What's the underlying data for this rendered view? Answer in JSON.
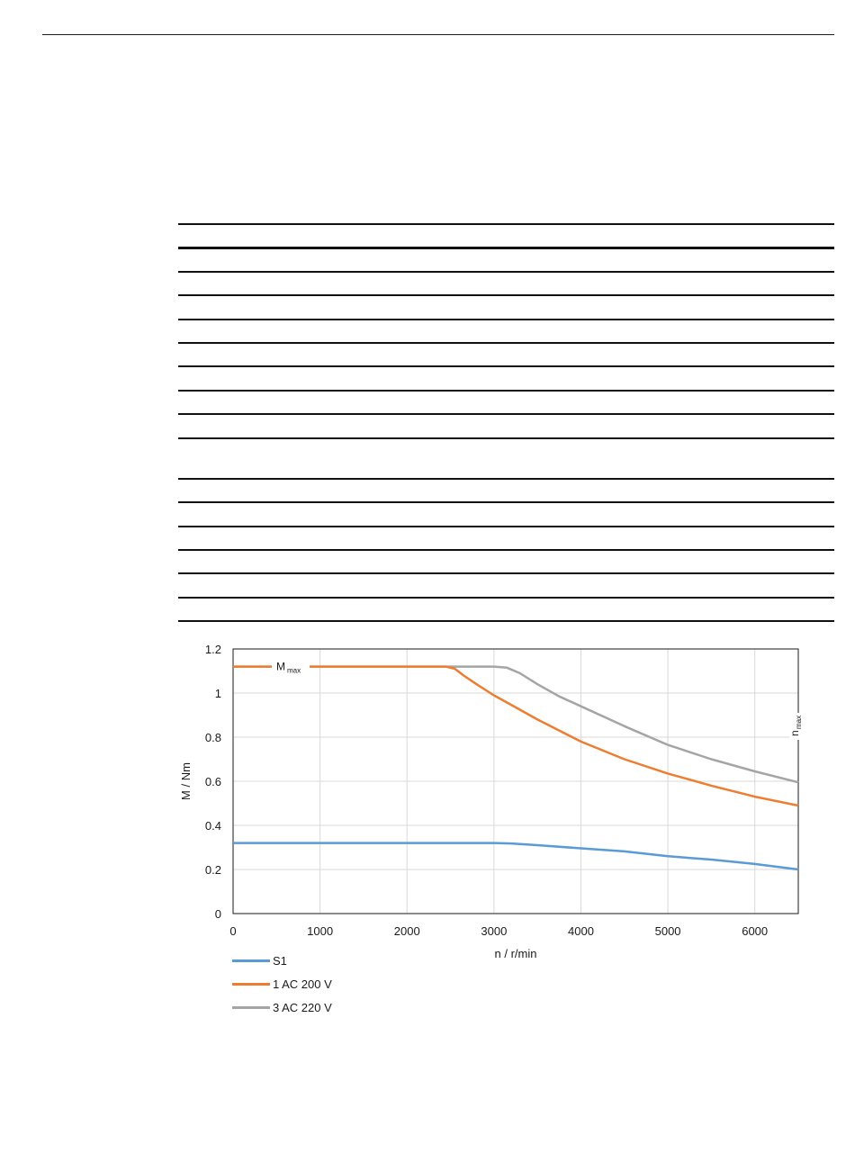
{
  "chart_data": {
    "type": "line",
    "xlabel": "n / r/min",
    "ylabel": "M / Nm",
    "xlim": [
      0,
      6500
    ],
    "ylim": [
      0,
      1.2
    ],
    "xticks": [
      0,
      1000,
      2000,
      3000,
      4000,
      5000,
      6000
    ],
    "yticks": [
      0,
      0.2,
      0.4,
      0.6,
      0.8,
      1,
      1.2
    ],
    "xtick_labels": [
      "0",
      "1000",
      "2000",
      "3000",
      "4000",
      "5000",
      "6000"
    ],
    "ytick_labels": [
      "0",
      "0.2",
      "0.4",
      "0.6",
      "0.8",
      "1",
      "1.2"
    ],
    "grid": true,
    "legend_position": "bottom-left",
    "annotations": {
      "mmax_main": "M",
      "mmax_sub": "max",
      "nmax_main": "n",
      "nmax_sub": "max"
    },
    "series": [
      {
        "name": "S1",
        "color": "#5b9bd5",
        "points": [
          [
            0,
            0.32
          ],
          [
            1000,
            0.32
          ],
          [
            2000,
            0.32
          ],
          [
            3000,
            0.32
          ],
          [
            3200,
            0.318
          ],
          [
            3500,
            0.31
          ],
          [
            4000,
            0.296
          ],
          [
            4500,
            0.282
          ],
          [
            5000,
            0.26
          ],
          [
            5500,
            0.245
          ],
          [
            6000,
            0.225
          ],
          [
            6500,
            0.2
          ]
        ]
      },
      {
        "name": "1 AC 200 V",
        "color": "#ed7d31",
        "points": [
          [
            0,
            1.12
          ],
          [
            2450,
            1.12
          ],
          [
            2550,
            1.11
          ],
          [
            2650,
            1.08
          ],
          [
            2800,
            1.04
          ],
          [
            3000,
            0.99
          ],
          [
            3250,
            0.935
          ],
          [
            3500,
            0.88
          ],
          [
            4000,
            0.78
          ],
          [
            4500,
            0.7
          ],
          [
            5000,
            0.635
          ],
          [
            5500,
            0.58
          ],
          [
            6000,
            0.53
          ],
          [
            6500,
            0.49
          ]
        ]
      },
      {
        "name": "3 AC 220 V",
        "color": "#a5a5a5",
        "points": [
          [
            0,
            1.12
          ],
          [
            3000,
            1.12
          ],
          [
            3150,
            1.115
          ],
          [
            3300,
            1.09
          ],
          [
            3500,
            1.04
          ],
          [
            3750,
            0.985
          ],
          [
            4000,
            0.94
          ],
          [
            4500,
            0.85
          ],
          [
            5000,
            0.765
          ],
          [
            5500,
            0.7
          ],
          [
            6000,
            0.645
          ],
          [
            6500,
            0.595
          ]
        ]
      }
    ]
  }
}
